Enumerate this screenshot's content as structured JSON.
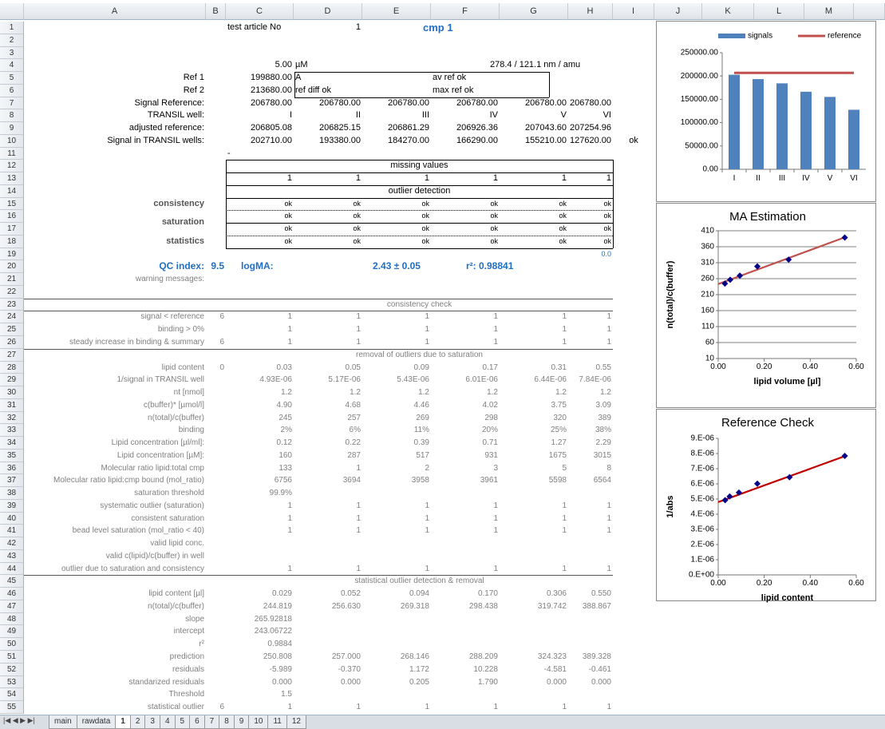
{
  "sheet": {
    "columns": [
      "A",
      "B",
      "C",
      "D",
      "E",
      "F",
      "G",
      "H",
      "I",
      "J",
      "K",
      "L",
      "M"
    ],
    "row_numbers": [
      1,
      2,
      3,
      4,
      5,
      6,
      7,
      8,
      9,
      10,
      11,
      12,
      13,
      14,
      15,
      16,
      17,
      18,
      19,
      20,
      21,
      22,
      23,
      24,
      25,
      26,
      27,
      28,
      29,
      30,
      31,
      32,
      33,
      34,
      35,
      36,
      37,
      38,
      39,
      40,
      41,
      42,
      43,
      44,
      45,
      46,
      47,
      48,
      49,
      50,
      51,
      52,
      53,
      54,
      55
    ],
    "rows": [
      {
        "C": "test article No",
        "D": "1",
        "F": "cmp 1"
      },
      {},
      {},
      {
        "C": "5.00",
        "D": "µM",
        "G": "278.4 / 121.1 nm / amu"
      },
      {
        "A": "Ref 1",
        "C": "199880.00",
        "D": "A",
        "F": "av ref ok"
      },
      {
        "A": "Ref 2",
        "C": "213680.00",
        "D": "ref diff ok",
        "F": "max ref ok"
      },
      {
        "A": "Signal Reference:",
        "C": "206780.00",
        "D": "206780.00",
        "E": "206780.00",
        "F": "206780.00",
        "G": "206780.00",
        "H": "206780.00"
      },
      {
        "A": "TRANSIL well:",
        "C": "I",
        "D": "II",
        "E": "III",
        "F": "IV",
        "G": "V",
        "H": "VI"
      },
      {
        "A": "adjusted reference:",
        "C": "206805.08",
        "D": "206825.15",
        "E": "206861.29",
        "F": "206926.36",
        "G": "207043.60",
        "H": "207254.96"
      },
      {
        "A": "Signal in TRANSIL wells:",
        "C": "202710.00",
        "D": "193380.00",
        "E": "184270.00",
        "F": "166290.00",
        "G": "155210.00",
        "H": "127620.00",
        "I": "ok"
      },
      {
        "C": "-"
      },
      {
        "C": "missing values"
      },
      {
        "C": "1",
        "D": "1",
        "E": "1",
        "F": "1",
        "G": "1",
        "H": "1"
      },
      {
        "C": "outlier detection"
      },
      {
        "A": "consistency",
        "C": "ok",
        "D": "ok",
        "E": "ok",
        "F": "ok",
        "G": "ok",
        "H": "ok"
      },
      {
        "A": "saturation",
        "C": "ok",
        "D": "ok",
        "E": "ok",
        "F": "ok",
        "G": "ok",
        "H": "ok"
      },
      {
        "C": "ok",
        "D": "ok",
        "E": "ok",
        "F": "ok",
        "G": "ok",
        "H": "ok"
      },
      {
        "A": "statistics",
        "C": "ok",
        "D": "ok",
        "E": "ok",
        "F": "ok",
        "G": "ok",
        "H": "ok"
      },
      {
        "H": "0.0"
      },
      {
        "A": "QC index:",
        "B": "9.5",
        "C": "logMA:",
        "E": "2.43 ± 0.05",
        "F": "r²: 0.98841"
      },
      {
        "A": "warning messages:"
      },
      {},
      {
        "C": "consistency check"
      },
      {
        "A": "signal < reference",
        "B": "6",
        "C": "1",
        "D": "1",
        "E": "1",
        "F": "1",
        "G": "1",
        "H": "1"
      },
      {
        "A": "binding > 0%",
        "C": "1",
        "D": "1",
        "E": "1",
        "F": "1",
        "G": "1",
        "H": "1"
      },
      {
        "A": "steady increase in binding & summary",
        "B": "6",
        "C": "1",
        "D": "1",
        "E": "1",
        "F": "1",
        "G": "1",
        "H": "1"
      },
      {
        "C": "removal of outliers due to saturation"
      },
      {
        "A": "lipid content",
        "B": "0",
        "C": "0.03",
        "D": "0.05",
        "E": "0.09",
        "F": "0.17",
        "G": "0.31",
        "H": "0.55"
      },
      {
        "A": "1/signal in TRANSIL well",
        "C": "4.93E-06",
        "D": "5.17E-06",
        "E": "5.43E-06",
        "F": "6.01E-06",
        "G": "6.44E-06",
        "H": "7.84E-06"
      },
      {
        "A": "nt [nmol]",
        "C": "1.2",
        "D": "1.2",
        "E": "1.2",
        "F": "1.2",
        "G": "1.2",
        "H": "1.2"
      },
      {
        "A": "c(buffer)* [µmol/l]",
        "C": "4.90",
        "D": "4.68",
        "E": "4.46",
        "F": "4.02",
        "G": "3.75",
        "H": "3.09"
      },
      {
        "A": "n(total)/c(buffer)",
        "C": "245",
        "D": "257",
        "E": "269",
        "F": "298",
        "G": "320",
        "H": "389"
      },
      {
        "A": "binding",
        "C": "2%",
        "D": "6%",
        "E": "11%",
        "F": "20%",
        "G": "25%",
        "H": "38%"
      },
      {
        "A": "Lipid concentration [µl/ml]:",
        "C": "0.12",
        "D": "0.22",
        "E": "0.39",
        "F": "0.71",
        "G": "1.27",
        "H": "2.29"
      },
      {
        "A": "Lipid concentration [µM]:",
        "C": "160",
        "D": "287",
        "E": "517",
        "F": "931",
        "G": "1675",
        "H": "3015"
      },
      {
        "A": "Molecular ratio lipid:total cmp",
        "C": "133",
        "D": "1",
        "E": "2",
        "F": "3",
        "G": "5",
        "H": "8"
      },
      {
        "A": "Molecular ratio lipid:cmp bound (mol_ratio)",
        "C": "6756",
        "D": "3694",
        "E": "3958",
        "F": "3961",
        "G": "5598",
        "H": "6564"
      },
      {
        "A": "saturation threshold",
        "C": "99.9%"
      },
      {
        "A": "systematic outlier (saturation)",
        "C": "1",
        "D": "1",
        "E": "1",
        "F": "1",
        "G": "1",
        "H": "1"
      },
      {
        "A": "consistent saturation",
        "C": "1",
        "D": "1",
        "E": "1",
        "F": "1",
        "G": "1",
        "H": "1"
      },
      {
        "A": "bead level saturation (mol_ratio < 40)",
        "C": "1",
        "D": "1",
        "E": "1",
        "F": "1",
        "G": "1",
        "H": "1"
      },
      {
        "A": "valid lipid conc."
      },
      {
        "A": "valid c(lipid)/c(buffer) in well"
      },
      {
        "A": "outlier due to saturation and consistency",
        "C": "1",
        "D": "1",
        "E": "1",
        "F": "1",
        "G": "1",
        "H": "1"
      },
      {
        "C": "statistical outlier detection & removal"
      },
      {
        "A": "lipid content [µl]",
        "C": "0.029",
        "D": "0.052",
        "E": "0.094",
        "F": "0.170",
        "G": "0.306",
        "H": "0.550"
      },
      {
        "A": "n(total)/c(buffer)",
        "C": "244.819",
        "D": "256.630",
        "E": "269.318",
        "F": "298.438",
        "G": "319.742",
        "H": "388.867"
      },
      {
        "A": "slope",
        "C": "265.92818"
      },
      {
        "A": "intercept",
        "C": "243.06722"
      },
      {
        "A": "r²",
        "C": "0.9884"
      },
      {
        "A": "prediction",
        "C": "250.808",
        "D": "257.000",
        "E": "268.146",
        "F": "288.209",
        "G": "324.323",
        "H": "389.328"
      },
      {
        "A": "residuals",
        "C": "-5.989",
        "D": "-0.370",
        "E": "1.172",
        "F": "10.228",
        "G": "-4.581",
        "H": "-0.461"
      },
      {
        "A": "standarized residuals",
        "C": "0.000",
        "D": "0.000",
        "E": "0.205",
        "F": "1.790",
        "G": "0.000",
        "H": "0.000"
      },
      {
        "A": "Threshold",
        "C": "1.5"
      },
      {
        "A": "statistical outlier",
        "B": "6",
        "C": "1",
        "D": "1",
        "E": "1",
        "F": "1",
        "G": "1",
        "H": "1"
      }
    ]
  },
  "chart_data": [
    {
      "type": "bar",
      "categories": [
        "I",
        "II",
        "III",
        "IV",
        "V",
        "VI"
      ],
      "series": [
        {
          "name": "signals",
          "kind": "bar",
          "color": "#4f81bd",
          "values": [
            202710,
            193380,
            184270,
            166290,
            155210,
            127620
          ]
        },
        {
          "name": "reference",
          "kind": "line",
          "color": "#c0504d",
          "values": [
            206780,
            206780,
            206780,
            206780,
            206780,
            206780
          ]
        }
      ],
      "ylim": [
        0,
        250000
      ],
      "yticks": [
        {
          "value": 0,
          "label": "0.00"
        },
        {
          "value": 50000,
          "label": "50000.00"
        },
        {
          "value": 100000,
          "label": "100000.00"
        },
        {
          "value": 150000,
          "label": "150000.00"
        },
        {
          "value": 200000,
          "label": "200000.00"
        },
        {
          "value": 250000,
          "label": "250000.00"
        }
      ],
      "legend": "top",
      "grid": false
    },
    {
      "type": "scatter",
      "title": "MA Estimation",
      "xlabel": "lipid volume [µl]",
      "ylabel": "n(total)/c(buffer)",
      "x": [
        0.029,
        0.052,
        0.094,
        0.17,
        0.306,
        0.55
      ],
      "values": [
        244.819,
        256.63,
        269.318,
        298.438,
        319.742,
        388.867
      ],
      "color": "#00008b",
      "trendline": {
        "slope": 265.92818,
        "intercept": 243.06722,
        "color": "#c0504d"
      },
      "xlim": [
        0,
        0.6
      ],
      "xticks": [
        {
          "value": 0,
          "label": "0.00"
        },
        {
          "value": 0.2,
          "label": "0.20"
        },
        {
          "value": 0.4,
          "label": "0.40"
        },
        {
          "value": 0.6,
          "label": "0.60"
        }
      ],
      "ylim": [
        10,
        410
      ],
      "yticks": [
        10,
        60,
        110,
        160,
        210,
        260,
        310,
        360,
        410
      ],
      "grid": true
    },
    {
      "type": "scatter",
      "title": "Reference Check",
      "xlabel": "lipid content",
      "ylabel": "1/abs",
      "x": [
        0.03,
        0.05,
        0.09,
        0.17,
        0.31,
        0.55
      ],
      "values": [
        4.93e-06,
        5.17e-06,
        5.43e-06,
        6.01e-06,
        6.44e-06,
        7.84e-06
      ],
      "color": "#00008b",
      "trendline": {
        "slope": 5.5e-06,
        "intercept": 4.8e-06,
        "color": "#c00000"
      },
      "xlim": [
        0,
        0.6
      ],
      "xticks": [
        {
          "value": 0,
          "label": "0.00"
        },
        {
          "value": 0.2,
          "label": "0.20"
        },
        {
          "value": 0.4,
          "label": "0.40"
        },
        {
          "value": 0.6,
          "label": "0.60"
        }
      ],
      "ylim": [
        0,
        9e-06
      ],
      "yticks": [
        {
          "value": 0,
          "label": "0.E+00"
        },
        {
          "value": 1e-06,
          "label": "1.E-06"
        },
        {
          "value": 2e-06,
          "label": "2.E-06"
        },
        {
          "value": 3e-06,
          "label": "3.E-06"
        },
        {
          "value": 4e-06,
          "label": "4.E-06"
        },
        {
          "value": 5e-06,
          "label": "5.E-06"
        },
        {
          "value": 6e-06,
          "label": "6.E-06"
        },
        {
          "value": 7e-06,
          "label": "7.E-06"
        },
        {
          "value": 8e-06,
          "label": "8.E-06"
        },
        {
          "value": 9e-06,
          "label": "9.E-06"
        }
      ],
      "grid": false
    }
  ],
  "tabs": [
    "main",
    "rawdata",
    "1",
    "2",
    "3",
    "4",
    "5",
    "6",
    "7",
    "8",
    "9",
    "10",
    "11",
    "12"
  ],
  "active_tab": 2
}
